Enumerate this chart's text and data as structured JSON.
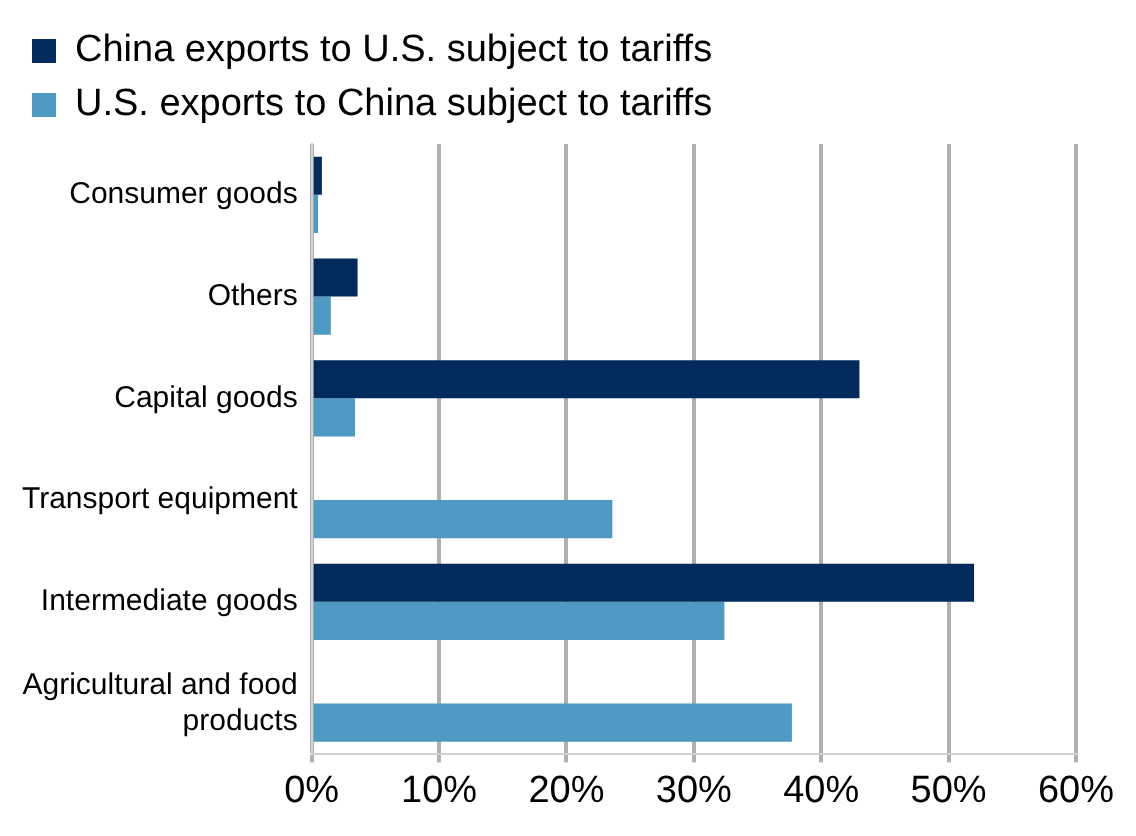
{
  "chart_data": {
    "type": "bar",
    "orientation": "horizontal",
    "categories": [
      "Consumer goods",
      "Others",
      "Capital goods",
      "Transport equipment",
      "Intermediate goods",
      "Agricultural and food products"
    ],
    "series": [
      {
        "name": "China exports to U.S. subject to tariffs",
        "color": "#002b5c",
        "values": [
          0.8,
          3.6,
          43.0,
          null,
          52.0,
          null
        ]
      },
      {
        "name": "U.S. exports to China subject to tariffs",
        "color": "#4f9ac3",
        "values": [
          0.5,
          1.5,
          3.4,
          23.6,
          32.4,
          37.7
        ]
      }
    ],
    "xlim": [
      0,
      60
    ],
    "xticks": [
      {
        "value": 0,
        "label": "0%"
      },
      {
        "value": 10,
        "label": "10%"
      },
      {
        "value": 20,
        "label": "20%"
      },
      {
        "value": 30,
        "label": "30%"
      },
      {
        "value": 40,
        "label": "40%"
      },
      {
        "value": 50,
        "label": "50%"
      },
      {
        "value": 60,
        "label": "60%"
      }
    ],
    "grid": "x",
    "legend": "top"
  }
}
